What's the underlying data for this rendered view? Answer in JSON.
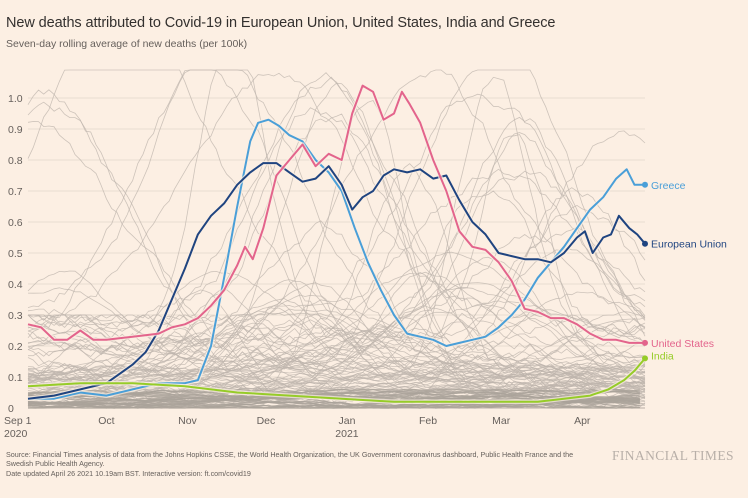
{
  "header": {
    "title": "New deaths attributed to Covid-19 in European Union, United States, India and Greece",
    "subtitle": "Seven-day rolling average of new deaths (per 100k)"
  },
  "footer": {
    "source_line1": "Source: Financial Times analysis of data from the Johns Hopkins CSSE, the World Health Organization, the UK Government coronavirus dashboard, Public Health France and the",
    "source_line2": "Swedish Public Health Agency.",
    "source_line3": "Date updated April 26 2021 10.19am BST. Interactive version: ft.com/covid19",
    "brand": "FINANCIAL TIMES"
  },
  "chart_data": {
    "type": "line",
    "title": "New deaths attributed to Covid-19 in European Union, United States, India and Greece",
    "subtitle": "Seven-day rolling average of new deaths (per 100k)",
    "xlabel": "",
    "ylabel": "",
    "ylim": [
      0,
      1.05
    ],
    "y_ticks": [
      0,
      0.1,
      0.2,
      0.3,
      0.4,
      0.5,
      0.6,
      0.7,
      0.8,
      0.9,
      1.0
    ],
    "y_tick_labels": [
      "0",
      "0.1",
      "0.2",
      "0.3",
      "0.4",
      "0.5",
      "0.6",
      "0.7",
      "0.8",
      "0.9",
      "1.0"
    ],
    "x_range_days": [
      0,
      236
    ],
    "x_ticks": [
      {
        "day": 0,
        "label": "Sep 1",
        "sublabel": "2020"
      },
      {
        "day": 30,
        "label": "Oct",
        "sublabel": ""
      },
      {
        "day": 61,
        "label": "Nov",
        "sublabel": ""
      },
      {
        "day": 91,
        "label": "Dec",
        "sublabel": ""
      },
      {
        "day": 122,
        "label": "Jan",
        "sublabel": "2021"
      },
      {
        "day": 153,
        "label": "Feb",
        "sublabel": ""
      },
      {
        "day": 181,
        "label": "Mar",
        "sublabel": ""
      },
      {
        "day": 212,
        "label": "Apr",
        "sublabel": ""
      }
    ],
    "grid": true,
    "background_series_note": "Many grey lines show other countries for context",
    "series": [
      {
        "name": "Greece",
        "color": "#4a9fd8",
        "days": [
          0,
          10,
          20,
          30,
          40,
          50,
          60,
          65,
          70,
          75,
          80,
          85,
          88,
          92,
          96,
          100,
          105,
          110,
          115,
          120,
          125,
          130,
          135,
          140,
          145,
          150,
          155,
          160,
          165,
          170,
          175,
          180,
          185,
          190,
          195,
          200,
          205,
          210,
          215,
          220,
          225,
          229,
          232,
          236
        ],
        "values": [
          0.03,
          0.03,
          0.05,
          0.04,
          0.06,
          0.08,
          0.08,
          0.09,
          0.2,
          0.42,
          0.65,
          0.86,
          0.92,
          0.93,
          0.91,
          0.88,
          0.86,
          0.8,
          0.76,
          0.7,
          0.58,
          0.47,
          0.38,
          0.3,
          0.24,
          0.23,
          0.22,
          0.2,
          0.21,
          0.22,
          0.23,
          0.26,
          0.3,
          0.35,
          0.42,
          0.47,
          0.52,
          0.58,
          0.64,
          0.68,
          0.74,
          0.77,
          0.72,
          0.72
        ],
        "end_label": "Greece"
      },
      {
        "name": "European Union",
        "color": "#1f4480",
        "days": [
          0,
          10,
          20,
          30,
          40,
          45,
          50,
          55,
          60,
          65,
          70,
          75,
          80,
          85,
          90,
          95,
          100,
          105,
          110,
          115,
          120,
          124,
          128,
          132,
          136,
          140,
          145,
          150,
          155,
          160,
          165,
          170,
          175,
          180,
          185,
          190,
          195,
          200,
          205,
          210,
          213,
          216,
          220,
          223,
          226,
          230,
          233,
          236
        ],
        "values": [
          0.03,
          0.04,
          0.06,
          0.08,
          0.14,
          0.18,
          0.25,
          0.35,
          0.45,
          0.56,
          0.62,
          0.66,
          0.72,
          0.76,
          0.79,
          0.79,
          0.76,
          0.73,
          0.74,
          0.78,
          0.72,
          0.64,
          0.68,
          0.7,
          0.75,
          0.77,
          0.76,
          0.77,
          0.74,
          0.75,
          0.67,
          0.6,
          0.56,
          0.5,
          0.49,
          0.48,
          0.48,
          0.47,
          0.5,
          0.55,
          0.57,
          0.5,
          0.55,
          0.56,
          0.62,
          0.58,
          0.56,
          0.53
        ],
        "end_label": "European Union"
      },
      {
        "name": "United States",
        "color": "#e3648c",
        "days": [
          0,
          5,
          10,
          15,
          20,
          25,
          30,
          40,
          50,
          55,
          60,
          65,
          70,
          75,
          80,
          83,
          86,
          90,
          95,
          100,
          105,
          110,
          115,
          120,
          124,
          128,
          132,
          136,
          140,
          143,
          146,
          150,
          155,
          160,
          165,
          170,
          175,
          180,
          185,
          190,
          195,
          200,
          205,
          210,
          215,
          220,
          225,
          230,
          236
        ],
        "values": [
          0.27,
          0.26,
          0.22,
          0.22,
          0.25,
          0.22,
          0.22,
          0.23,
          0.24,
          0.26,
          0.27,
          0.29,
          0.33,
          0.38,
          0.46,
          0.52,
          0.48,
          0.58,
          0.75,
          0.8,
          0.85,
          0.78,
          0.82,
          0.8,
          0.95,
          1.04,
          1.02,
          0.93,
          0.95,
          1.02,
          0.98,
          0.92,
          0.8,
          0.7,
          0.57,
          0.52,
          0.51,
          0.47,
          0.41,
          0.32,
          0.31,
          0.29,
          0.29,
          0.27,
          0.24,
          0.22,
          0.22,
          0.21,
          0.21
        ],
        "end_label": "United States"
      },
      {
        "name": "India",
        "color": "#96cc28",
        "days": [
          0,
          20,
          40,
          60,
          80,
          100,
          120,
          140,
          160,
          180,
          195,
          205,
          215,
          222,
          228,
          232,
          236
        ],
        "values": [
          0.07,
          0.08,
          0.08,
          0.07,
          0.05,
          0.04,
          0.03,
          0.02,
          0.02,
          0.02,
          0.02,
          0.03,
          0.04,
          0.06,
          0.09,
          0.12,
          0.16
        ],
        "end_label": "India"
      }
    ]
  }
}
